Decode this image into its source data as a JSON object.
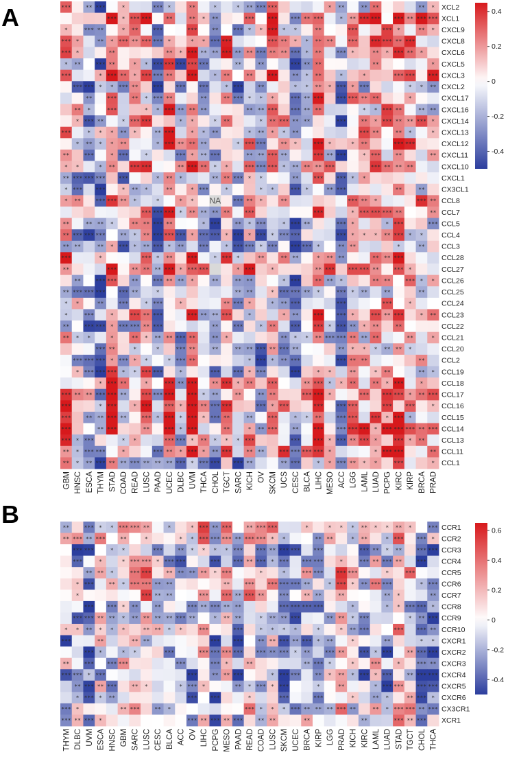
{
  "chart_data": [
    {
      "type": "heatmap",
      "panel": "A",
      "columns": [
        "GBM",
        "HNSC",
        "ESCA",
        "THYM",
        "STAD",
        "COAD",
        "READ",
        "LUSC",
        "PAAD",
        "UCEC",
        "DLBC",
        "UVM",
        "THCA",
        "CHOL",
        "TGCT",
        "SARC",
        "KICH",
        "OV",
        "SKCM",
        "UCS",
        "CESC",
        "BLCA",
        "LIHC",
        "MESO",
        "ACC",
        "LGG",
        "LAML",
        "LUAD",
        "PCPG",
        "KIRC",
        "KIRP",
        "BRCA",
        "PRAD"
      ],
      "rows": [
        "XCL2",
        "XCL1",
        "CXCL9",
        "CXCL8",
        "CXCL6",
        "CXCL5",
        "CXCL3",
        "CXCL2",
        "CXCL17",
        "CXCL16",
        "CXCL14",
        "CXCL13",
        "CXCL12",
        "CXCL11",
        "CXCL10",
        "CXCL1",
        "CX3CL1",
        "CCL8",
        "CCL7",
        "CCL5",
        "CCL4",
        "CCL3",
        "CCL28",
        "CCL27",
        "CCL26",
        "CCL25",
        "CCL24",
        "CCL23",
        "CCL22",
        "CCL21",
        "CCL20",
        "CCL2",
        "CCL19",
        "CCL18",
        "CCL17",
        "CCL16",
        "CCL15",
        "CCL14",
        "CCL13",
        "CCL11",
        "CCL1"
      ],
      "colorbar": {
        "ticks": [
          0.4,
          0.2,
          0,
          -0.2,
          -0.4
        ],
        "range": [
          -0.5,
          0.45
        ]
      },
      "na_label": "NA",
      "na_cells": [
        [
          17,
          13
        ],
        [
          23,
          13
        ]
      ]
    },
    {
      "type": "heatmap",
      "panel": "B",
      "columns": [
        "THYM",
        "DLBC",
        "UVM",
        "ESCA",
        "HNSC",
        "GBM",
        "SARC",
        "LUSC",
        "CESC",
        "BLCA",
        "ACC",
        "OV",
        "LIHC",
        "PCPG",
        "MESO",
        "PAAD",
        "READ",
        "COAD",
        "LUSC",
        "SKCM",
        "UCEC",
        "BRCA",
        "KIRP",
        "LGG",
        "PRAD",
        "KICH",
        "KIRC",
        "LAML",
        "LUAD",
        "STAD",
        "TGCT",
        "CHOL",
        "THCA"
      ],
      "rows": [
        "CCR1",
        "CCR2",
        "CCR3",
        "CCR4",
        "CCR5",
        "CCR6",
        "CCR7",
        "CCR8",
        "CCR9",
        "CCR10",
        "CXCR1",
        "CXCR2",
        "CXCR3",
        "CXCR4",
        "CXCR5",
        "CXCR6",
        "CX3CR1",
        "XCR1"
      ],
      "colorbar": {
        "ticks": [
          0.6,
          0.4,
          0.2,
          0,
          -0.2,
          -0.4
        ],
        "range": [
          -0.5,
          0.65
        ]
      }
    }
  ],
  "panels": {
    "a": "A",
    "b": "B"
  }
}
